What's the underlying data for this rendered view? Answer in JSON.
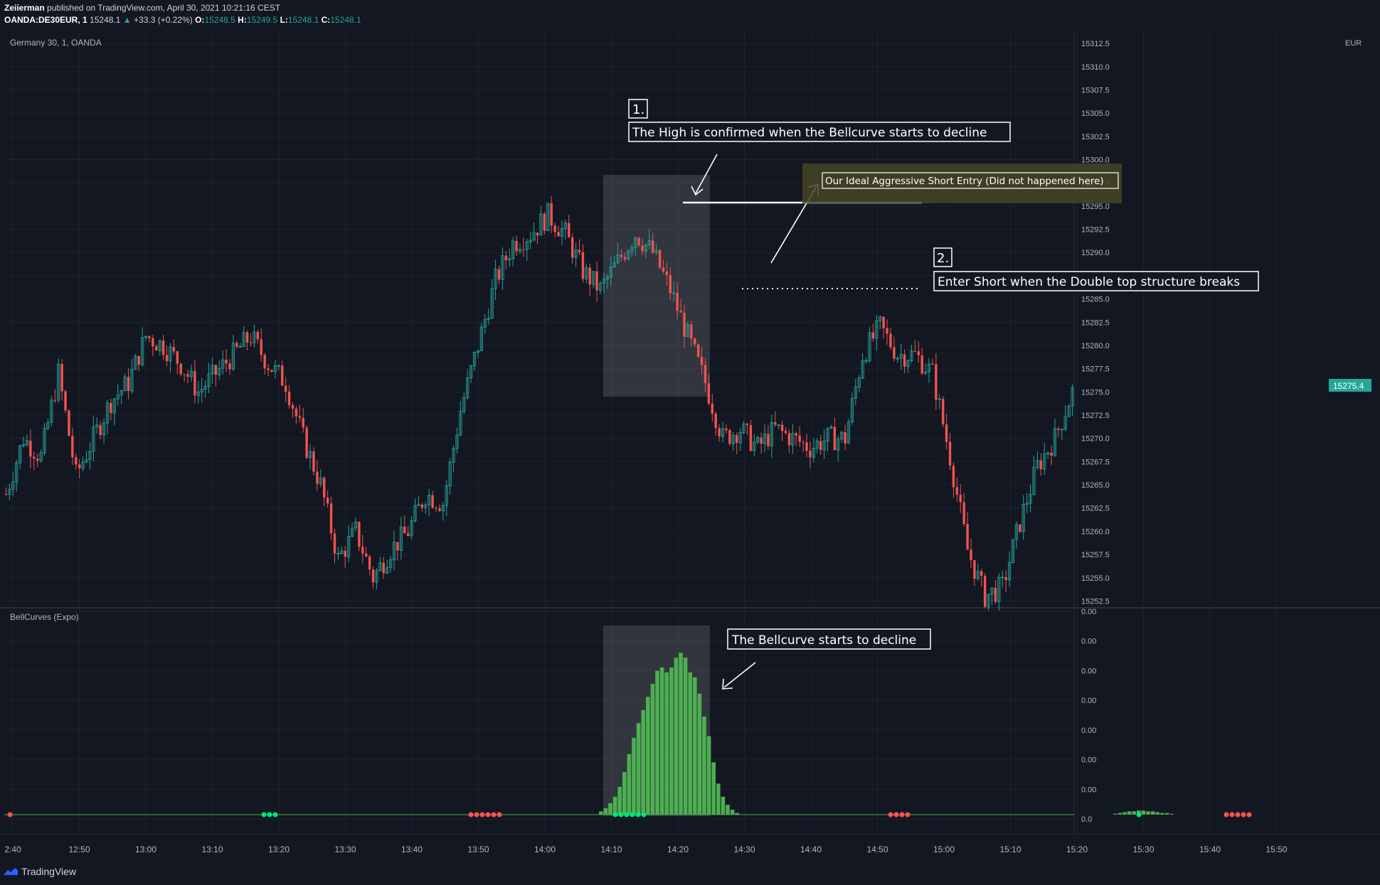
{
  "header": {
    "author": "Zeiierman",
    "published": "published on TradingView.com, April 30, 2021 10:21:16 CEST",
    "symbol": "OANDA:DE30EUR, 1",
    "last": "15248.1",
    "change": "+33.3 (+0.22%)",
    "o_label": "O:",
    "o": "15248.5",
    "h_label": "H:",
    "h": "15249.5",
    "l_label": "L:",
    "l": "15248.1",
    "c_label": "C:",
    "c": "15248.1"
  },
  "footer": {
    "brand": "TradingView"
  },
  "colors": {
    "background": "#131722",
    "grid": "#1e222d",
    "text": "#b2b5be",
    "up": "#26a69a",
    "down": "#ef5350",
    "bell": "#4caf50",
    "dot_green": "#00e676",
    "dot_red": "#ff5252",
    "price_badge": "#26a69a"
  },
  "chart_data": [
    {
      "type": "candlestick",
      "title": "Germany 30, 1, OANDA",
      "currency": "EUR",
      "x_ticks": [
        "2:40",
        "12:50",
        "13:00",
        "13:10",
        "13:20",
        "13:30",
        "13:40",
        "13:50",
        "14:00",
        "14:10",
        "14:20",
        "14:30",
        "14:40",
        "14:50",
        "15:00",
        "15:10",
        "15:20",
        "15:30",
        "15:40",
        "15:50"
      ],
      "y_ticks": [
        "15312.5",
        "15310.0",
        "15307.5",
        "15305.0",
        "15302.5",
        "15300.0",
        "15297.5",
        "15295.0",
        "15292.5",
        "15290.0",
        "15287.5",
        "15285.0",
        "15282.5",
        "15280.0",
        "15277.5",
        "15275.0",
        "15272.5",
        "15270.0",
        "15267.5",
        "15265.0",
        "15262.5",
        "15260.0",
        "15257.5",
        "15255.0",
        "15252.5"
      ],
      "ylim": [
        15252.0,
        15313.5
      ],
      "last_price": "15275.4",
      "close_path": [
        [
          0,
          15264
        ],
        [
          5,
          15270
        ],
        [
          10,
          15268
        ],
        [
          15,
          15277
        ],
        [
          20,
          15266
        ],
        [
          25,
          15270
        ],
        [
          30,
          15274
        ],
        [
          35,
          15276
        ],
        [
          40,
          15281
        ],
        [
          45,
          15280
        ],
        [
          50,
          15278
        ],
        [
          55,
          15275
        ],
        [
          60,
          15277
        ],
        [
          65,
          15279
        ],
        [
          70,
          15281
        ],
        [
          75,
          15278
        ],
        [
          80,
          15276
        ],
        [
          85,
          15270
        ],
        [
          90,
          15265
        ],
        [
          95,
          15257
        ],
        [
          100,
          15260
        ],
        [
          105,
          15255
        ],
        [
          110,
          15258
        ],
        [
          115,
          15260
        ],
        [
          120,
          15264
        ],
        [
          125,
          15263
        ],
        [
          130,
          15273
        ],
        [
          135,
          15280
        ],
        [
          140,
          15287
        ],
        [
          145,
          15291
        ],
        [
          150,
          15292
        ],
        [
          155,
          15294
        ],
        [
          160,
          15292
        ],
        [
          165,
          15288
        ],
        [
          170,
          15286
        ],
        [
          175,
          15289
        ],
        [
          180,
          15292
        ],
        [
          185,
          15290
        ],
        [
          190,
          15286
        ],
        [
          195,
          15281
        ],
        [
          200,
          15276
        ],
        [
          205,
          15270
        ],
        [
          210,
          15271
        ],
        [
          215,
          15269
        ],
        [
          220,
          15271
        ],
        [
          225,
          15270
        ],
        [
          230,
          15269
        ],
        [
          235,
          15270
        ],
        [
          240,
          15270
        ],
        [
          245,
          15279
        ],
        [
          250,
          15282
        ],
        [
          255,
          15279
        ],
        [
          260,
          15279
        ],
        [
          265,
          15277
        ],
        [
          270,
          15268
        ],
        [
          275,
          15258
        ],
        [
          280,
          15253
        ],
        [
          285,
          15254
        ],
        [
          290,
          15261
        ],
        [
          295,
          15267
        ],
        [
          300,
          15270
        ],
        [
          305,
          15275
        ]
      ],
      "annotations": [
        {
          "id": "label-1",
          "text": "1."
        },
        {
          "id": "label-high",
          "text": "The High is confirmed when the Bellcurve starts to decline"
        },
        {
          "id": "label-entry",
          "text": "Our Ideal Aggressive Short Entry (Did not happened here)"
        },
        {
          "id": "label-2",
          "text": "2."
        },
        {
          "id": "label-short",
          "text": "Enter Short when the Double top structure breaks"
        }
      ]
    },
    {
      "type": "bar",
      "title": "BellCurves (Expo)",
      "y_ticks": [
        "0.00",
        "0.00",
        "0.00",
        "0.00",
        "0.00",
        "0.00",
        "0.00",
        "0.0"
      ],
      "ylim": [
        0,
        1
      ],
      "bell_values": [
        0.02,
        0.04,
        0.07,
        0.11,
        0.17,
        0.26,
        0.37,
        0.47,
        0.56,
        0.64,
        0.72,
        0.8,
        0.88,
        0.9,
        0.87,
        0.9,
        0.96,
        0.99,
        0.96,
        0.87,
        0.84,
        0.74,
        0.6,
        0.48,
        0.32,
        0.19,
        0.11,
        0.06,
        0.03,
        0.01
      ],
      "small_bump": [
        0.005,
        0.01,
        0.015,
        0.02,
        0.02,
        0.025,
        0.025,
        0.02,
        0.02,
        0.015,
        0.01,
        0.01,
        0.005
      ],
      "annotation": {
        "id": "label-bell",
        "text": "The Bellcurve starts to decline"
      }
    }
  ]
}
